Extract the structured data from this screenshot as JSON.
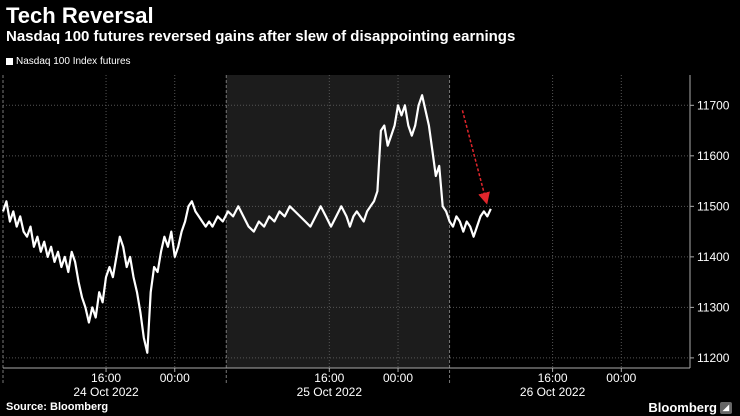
{
  "title": "Tech Reversal",
  "subtitle": "Nasdaq 100 futures reversed gains after slew of disappointing earnings",
  "source": "Source: Bloomberg",
  "brand": "Bloomberg",
  "chart_data": {
    "type": "line",
    "series": [
      {
        "name": "Nasdaq 100 Index futures",
        "color": "#ffffff",
        "points": [
          [
            0,
            11490
          ],
          [
            0.4,
            11510
          ],
          [
            0.8,
            11470
          ],
          [
            1.2,
            11490
          ],
          [
            1.6,
            11460
          ],
          [
            2,
            11480
          ],
          [
            2.4,
            11450
          ],
          [
            2.8,
            11440
          ],
          [
            3.2,
            11460
          ],
          [
            3.6,
            11420
          ],
          [
            4,
            11440
          ],
          [
            4.4,
            11410
          ],
          [
            4.8,
            11430
          ],
          [
            5.2,
            11400
          ],
          [
            5.6,
            11420
          ],
          [
            6,
            11390
          ],
          [
            6.4,
            11410
          ],
          [
            6.8,
            11380
          ],
          [
            7.2,
            11400
          ],
          [
            7.6,
            11370
          ],
          [
            8,
            11410
          ],
          [
            8.4,
            11390
          ],
          [
            8.8,
            11350
          ],
          [
            9.2,
            11320
          ],
          [
            9.6,
            11300
          ],
          [
            10,
            11270
          ],
          [
            10.4,
            11300
          ],
          [
            10.8,
            11280
          ],
          [
            11.2,
            11330
          ],
          [
            11.6,
            11310
          ],
          [
            12,
            11360
          ],
          [
            12.4,
            11380
          ],
          [
            12.8,
            11360
          ],
          [
            13.2,
            11400
          ],
          [
            13.6,
            11440
          ],
          [
            14,
            11420
          ],
          [
            14.4,
            11380
          ],
          [
            14.8,
            11400
          ],
          [
            15.2,
            11360
          ],
          [
            15.6,
            11330
          ],
          [
            16,
            11290
          ],
          [
            16.4,
            11240
          ],
          [
            16.8,
            11210
          ],
          [
            17.2,
            11330
          ],
          [
            17.6,
            11380
          ],
          [
            18,
            11370
          ],
          [
            18.4,
            11410
          ],
          [
            18.8,
            11440
          ],
          [
            19.2,
            11420
          ],
          [
            19.6,
            11450
          ],
          [
            20,
            11400
          ],
          [
            20.4,
            11420
          ],
          [
            20.8,
            11450
          ],
          [
            21.2,
            11470
          ],
          [
            21.6,
            11500
          ],
          [
            22,
            11510
          ],
          [
            22.4,
            11490
          ],
          [
            22.8,
            11480
          ],
          [
            23.2,
            11470
          ],
          [
            23.6,
            11460
          ],
          [
            24,
            11470
          ],
          [
            24.4,
            11460
          ],
          [
            25,
            11480
          ],
          [
            25.6,
            11470
          ],
          [
            26.2,
            11490
          ],
          [
            26.8,
            11480
          ],
          [
            27.4,
            11500
          ],
          [
            28,
            11480
          ],
          [
            28.6,
            11460
          ],
          [
            29.2,
            11450
          ],
          [
            29.8,
            11470
          ],
          [
            30.4,
            11460
          ],
          [
            31,
            11480
          ],
          [
            31.6,
            11470
          ],
          [
            32.2,
            11490
          ],
          [
            32.8,
            11480
          ],
          [
            33.4,
            11500
          ],
          [
            34,
            11490
          ],
          [
            34.6,
            11480
          ],
          [
            35.2,
            11470
          ],
          [
            35.8,
            11460
          ],
          [
            36.4,
            11480
          ],
          [
            37,
            11500
          ],
          [
            37.6,
            11480
          ],
          [
            38.2,
            11460
          ],
          [
            38.8,
            11480
          ],
          [
            39.4,
            11500
          ],
          [
            40,
            11480
          ],
          [
            40.4,
            11460
          ],
          [
            40.8,
            11480
          ],
          [
            41.2,
            11490
          ],
          [
            41.6,
            11480
          ],
          [
            42,
            11470
          ],
          [
            42.4,
            11490
          ],
          [
            42.8,
            11500
          ],
          [
            43.2,
            11510
          ],
          [
            43.6,
            11530
          ],
          [
            44,
            11650
          ],
          [
            44.4,
            11660
          ],
          [
            44.8,
            11620
          ],
          [
            45.2,
            11640
          ],
          [
            45.6,
            11660
          ],
          [
            46,
            11700
          ],
          [
            46.4,
            11680
          ],
          [
            46.8,
            11700
          ],
          [
            47.2,
            11660
          ],
          [
            47.6,
            11640
          ],
          [
            48,
            11660
          ],
          [
            48.4,
            11700
          ],
          [
            48.8,
            11720
          ],
          [
            49.2,
            11690
          ],
          [
            49.6,
            11660
          ],
          [
            50,
            11610
          ],
          [
            50.4,
            11560
          ],
          [
            50.8,
            11580
          ],
          [
            51.2,
            11500
          ],
          [
            51.6,
            11490
          ],
          [
            52,
            11470
          ],
          [
            52.4,
            11460
          ],
          [
            52.8,
            11480
          ],
          [
            53.2,
            11470
          ],
          [
            53.6,
            11450
          ],
          [
            54,
            11470
          ],
          [
            54.4,
            11460
          ],
          [
            54.8,
            11440
          ],
          [
            55.2,
            11460
          ],
          [
            55.6,
            11480
          ],
          [
            56,
            11490
          ],
          [
            56.4,
            11480
          ],
          [
            56.8,
            11495
          ]
        ]
      }
    ],
    "x_range": [
      0,
      80
    ],
    "y_range": [
      11180,
      11760
    ],
    "x_ticks": [
      {
        "x": 12,
        "label": "16:00"
      },
      {
        "x": 20,
        "label": "00:00"
      },
      {
        "x": 38,
        "label": "16:00"
      },
      {
        "x": 46,
        "label": "00:00"
      },
      {
        "x": 64,
        "label": "16:00"
      },
      {
        "x": 72,
        "label": "00:00"
      }
    ],
    "date_labels": [
      {
        "x": 12,
        "label": "24 Oct 2022"
      },
      {
        "x": 38,
        "label": "25 Oct 2022"
      },
      {
        "x": 64,
        "label": "26 Oct 2022"
      }
    ],
    "day_boundaries": [
      0,
      26,
      52
    ],
    "shaded_range": [
      26,
      52
    ],
    "y_ticks": [
      11200,
      11300,
      11400,
      11500,
      11600,
      11700
    ],
    "y_axis_position": "right",
    "grid": "dotted",
    "legend_position": "top-left",
    "annotation": {
      "type": "arrow",
      "color": "#e0262c",
      "from": [
        53.5,
        11690
      ],
      "to": [
        56.2,
        11515
      ]
    }
  }
}
